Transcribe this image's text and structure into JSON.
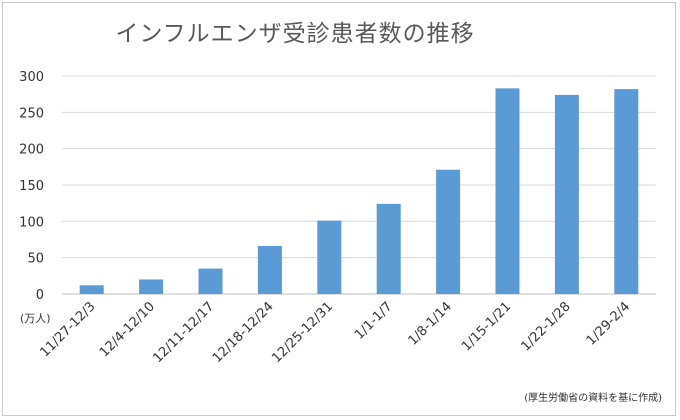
{
  "chart_data": {
    "type": "bar",
    "title": "インフルエンザ受診患者数の推移",
    "unit_label": "(万人)",
    "source_note": "(厚生労働省の資料を基に作成)",
    "categories": [
      "11/27-12/3",
      "12/4-12/10",
      "12/11-12/17",
      "12/18-12/24",
      "12/25-12/31",
      "1/1-1/7",
      "1/8-1/14",
      "1/15-1/21",
      "1/22-1/28",
      "1/29-2/4"
    ],
    "values": [
      12,
      20,
      35,
      66,
      101,
      124,
      171,
      283,
      274,
      282
    ],
    "ylim": [
      0,
      300
    ],
    "yticks": [
      0,
      50,
      100,
      150,
      200,
      250,
      300
    ],
    "grid": true,
    "bar_color": "#5b9bd5"
  }
}
